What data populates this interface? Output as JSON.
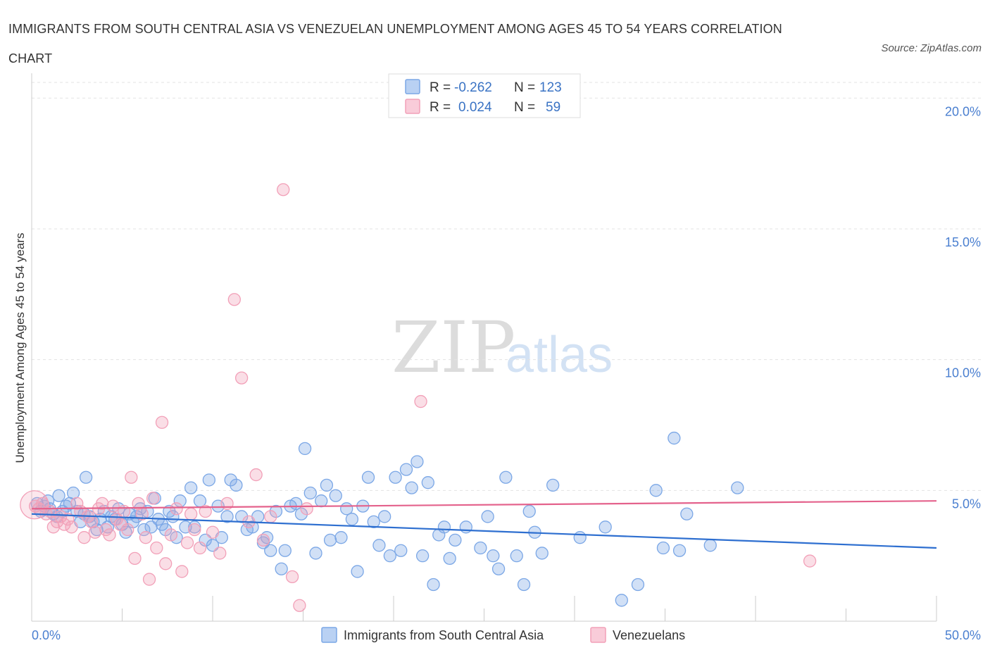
{
  "title": "IMMIGRANTS FROM SOUTH CENTRAL ASIA VS VENEZUELAN UNEMPLOYMENT AMONG AGES 45 TO 54 YEARS CORRELATION CHART",
  "source": "Source: ZipAtlas.com",
  "watermark": {
    "zip": "ZIP",
    "atlas": "atlas"
  },
  "colors": {
    "blue": "#7ba7e6",
    "pink": "#f2a0b8",
    "blue_line": "#2e6fd0",
    "pink_line": "#e4628c",
    "tick": "#4a7fd0"
  },
  "stats": [
    {
      "r_label": "R =",
      "r": "-0.262",
      "n_label": "N =",
      "n": "123"
    },
    {
      "r_label": "R =",
      "r": "0.024",
      "n_label": "N =",
      "n": "59"
    }
  ],
  "chart_data": {
    "type": "scatter",
    "title": "IMMIGRANTS FROM SOUTH CENTRAL ASIA VS VENEZUELAN UNEMPLOYMENT AMONG AGES 45 TO 54 YEARS CORRELATION CHART",
    "xlabel": "",
    "ylabel": "Unemployment Among Ages 45 to 54 years",
    "xlim": [
      0,
      50
    ],
    "ylim": [
      0,
      20.6
    ],
    "x_tick_labels": [
      "0.0%",
      "50.0%"
    ],
    "y_ticks": [
      5,
      10,
      15,
      20
    ],
    "y_tick_labels": [
      "5.0%",
      "10.0%",
      "15.0%",
      "20.0%"
    ],
    "grid": "horizontal dashed",
    "legend_position": "bottom",
    "series": [
      {
        "name": "Immigrants from South Central Asia",
        "color": "#7ba7e6",
        "trend": {
          "x": [
            0,
            50
          ],
          "y": [
            4.1,
            2.8
          ]
        },
        "points": [
          [
            0.3,
            4.5
          ],
          [
            0.5,
            4.2
          ],
          [
            0.7,
            4.4
          ],
          [
            0.9,
            4.6
          ],
          [
            1.0,
            4.3
          ],
          [
            1.2,
            4.1
          ],
          [
            1.4,
            4.0
          ],
          [
            1.5,
            4.8
          ],
          [
            1.7,
            4.2
          ],
          [
            1.9,
            4.4
          ],
          [
            2.1,
            4.5
          ],
          [
            2.3,
            4.9
          ],
          [
            2.5,
            4.2
          ],
          [
            2.7,
            3.8
          ],
          [
            2.9,
            4.1
          ],
          [
            3.0,
            5.5
          ],
          [
            3.2,
            4.0
          ],
          [
            3.4,
            3.8
          ],
          [
            3.6,
            3.5
          ],
          [
            3.8,
            3.9
          ],
          [
            4.0,
            4.2
          ],
          [
            4.2,
            3.6
          ],
          [
            4.4,
            4.0
          ],
          [
            4.6,
            3.9
          ],
          [
            4.8,
            4.3
          ],
          [
            5.0,
            3.7
          ],
          [
            5.2,
            3.4
          ],
          [
            5.4,
            4.1
          ],
          [
            5.6,
            3.8
          ],
          [
            5.8,
            4.0
          ],
          [
            6.0,
            4.3
          ],
          [
            6.2,
            3.5
          ],
          [
            6.4,
            4.2
          ],
          [
            6.6,
            3.6
          ],
          [
            6.8,
            4.7
          ],
          [
            7.0,
            3.9
          ],
          [
            7.2,
            3.7
          ],
          [
            7.4,
            3.5
          ],
          [
            7.6,
            4.2
          ],
          [
            7.8,
            4.0
          ],
          [
            8.0,
            3.2
          ],
          [
            8.2,
            4.6
          ],
          [
            8.5,
            3.6
          ],
          [
            8.8,
            5.1
          ],
          [
            9.0,
            3.6
          ],
          [
            9.3,
            4.6
          ],
          [
            9.6,
            3.1
          ],
          [
            9.8,
            5.4
          ],
          [
            10.0,
            2.9
          ],
          [
            10.3,
            4.4
          ],
          [
            10.5,
            3.2
          ],
          [
            10.8,
            4.0
          ],
          [
            11.0,
            5.4
          ],
          [
            11.3,
            5.2
          ],
          [
            11.6,
            4.0
          ],
          [
            11.9,
            3.5
          ],
          [
            12.2,
            3.6
          ],
          [
            12.5,
            4.0
          ],
          [
            12.8,
            3.0
          ],
          [
            13.0,
            3.2
          ],
          [
            13.2,
            2.7
          ],
          [
            13.5,
            4.2
          ],
          [
            13.8,
            2.0
          ],
          [
            14.0,
            2.7
          ],
          [
            14.3,
            4.4
          ],
          [
            14.6,
            4.5
          ],
          [
            14.9,
            4.1
          ],
          [
            15.1,
            6.6
          ],
          [
            15.4,
            4.9
          ],
          [
            15.7,
            2.6
          ],
          [
            16.0,
            4.6
          ],
          [
            16.3,
            5.2
          ],
          [
            16.5,
            3.1
          ],
          [
            16.8,
            4.8
          ],
          [
            17.1,
            3.2
          ],
          [
            17.4,
            4.3
          ],
          [
            17.7,
            3.9
          ],
          [
            18.0,
            1.9
          ],
          [
            18.3,
            4.4
          ],
          [
            18.6,
            5.5
          ],
          [
            18.9,
            3.8
          ],
          [
            19.2,
            2.9
          ],
          [
            19.5,
            4.0
          ],
          [
            19.8,
            2.5
          ],
          [
            20.1,
            5.5
          ],
          [
            20.4,
            2.7
          ],
          [
            20.7,
            5.8
          ],
          [
            21.0,
            5.1
          ],
          [
            21.3,
            6.1
          ],
          [
            21.6,
            2.5
          ],
          [
            21.9,
            5.3
          ],
          [
            22.2,
            1.4
          ],
          [
            22.5,
            3.3
          ],
          [
            22.8,
            3.6
          ],
          [
            23.1,
            2.4
          ],
          [
            23.4,
            3.1
          ],
          [
            24.0,
            3.6
          ],
          [
            24.8,
            2.8
          ],
          [
            25.2,
            4.0
          ],
          [
            25.5,
            2.5
          ],
          [
            25.8,
            2.0
          ],
          [
            26.2,
            5.5
          ],
          [
            26.8,
            2.5
          ],
          [
            27.2,
            1.4
          ],
          [
            27.5,
            4.2
          ],
          [
            27.8,
            3.4
          ],
          [
            28.2,
            2.6
          ],
          [
            28.8,
            5.2
          ],
          [
            30.3,
            3.2
          ],
          [
            31.7,
            3.6
          ],
          [
            32.6,
            0.8
          ],
          [
            33.5,
            1.4
          ],
          [
            34.5,
            5.0
          ],
          [
            34.9,
            2.8
          ],
          [
            35.5,
            7.0
          ],
          [
            35.8,
            2.7
          ],
          [
            36.2,
            4.1
          ],
          [
            37.5,
            2.9
          ],
          [
            39.0,
            5.1
          ]
        ]
      },
      {
        "name": "Venezuelans",
        "color": "#f2a0b8",
        "trend": {
          "x": [
            0,
            50
          ],
          "y": [
            4.3,
            4.6
          ]
        },
        "points": [
          [
            0.2,
            4.4
          ],
          [
            0.4,
            4.3
          ],
          [
            0.6,
            4.5
          ],
          [
            0.8,
            4.1
          ],
          [
            1.0,
            4.2
          ],
          [
            1.2,
            3.6
          ],
          [
            1.4,
            3.8
          ],
          [
            1.6,
            4.0
          ],
          [
            1.8,
            3.7
          ],
          [
            2.0,
            3.9
          ],
          [
            2.2,
            3.6
          ],
          [
            2.5,
            4.5
          ],
          [
            2.7,
            4.2
          ],
          [
            2.9,
            3.2
          ],
          [
            3.1,
            4.0
          ],
          [
            3.3,
            3.8
          ],
          [
            3.5,
            3.4
          ],
          [
            3.7,
            4.3
          ],
          [
            3.9,
            4.5
          ],
          [
            4.1,
            3.5
          ],
          [
            4.3,
            3.3
          ],
          [
            4.5,
            4.4
          ],
          [
            4.7,
            3.9
          ],
          [
            4.9,
            3.7
          ],
          [
            5.1,
            4.2
          ],
          [
            5.3,
            3.5
          ],
          [
            5.5,
            5.5
          ],
          [
            5.7,
            2.4
          ],
          [
            5.9,
            4.5
          ],
          [
            6.1,
            4.1
          ],
          [
            6.3,
            3.2
          ],
          [
            6.5,
            1.6
          ],
          [
            6.7,
            4.7
          ],
          [
            6.9,
            2.8
          ],
          [
            7.2,
            7.6
          ],
          [
            7.4,
            2.2
          ],
          [
            7.7,
            3.3
          ],
          [
            8.0,
            4.3
          ],
          [
            8.3,
            1.9
          ],
          [
            8.6,
            3.0
          ],
          [
            8.8,
            4.1
          ],
          [
            9.0,
            3.5
          ],
          [
            9.3,
            2.8
          ],
          [
            9.6,
            4.2
          ],
          [
            10.0,
            3.4
          ],
          [
            10.4,
            2.6
          ],
          [
            10.8,
            4.5
          ],
          [
            11.2,
            12.3
          ],
          [
            11.6,
            9.3
          ],
          [
            12.0,
            3.8
          ],
          [
            12.4,
            5.6
          ],
          [
            12.8,
            3.1
          ],
          [
            13.2,
            4.0
          ],
          [
            13.9,
            16.5
          ],
          [
            14.4,
            1.7
          ],
          [
            14.8,
            0.6
          ],
          [
            15.2,
            4.3
          ],
          [
            21.5,
            8.4
          ],
          [
            43.0,
            2.3
          ]
        ]
      }
    ]
  },
  "legend": [
    {
      "label": "Immigrants from South Central Asia",
      "color": "#7ba7e6"
    },
    {
      "label": "Venezuelans",
      "color": "#f2a0b8"
    }
  ]
}
